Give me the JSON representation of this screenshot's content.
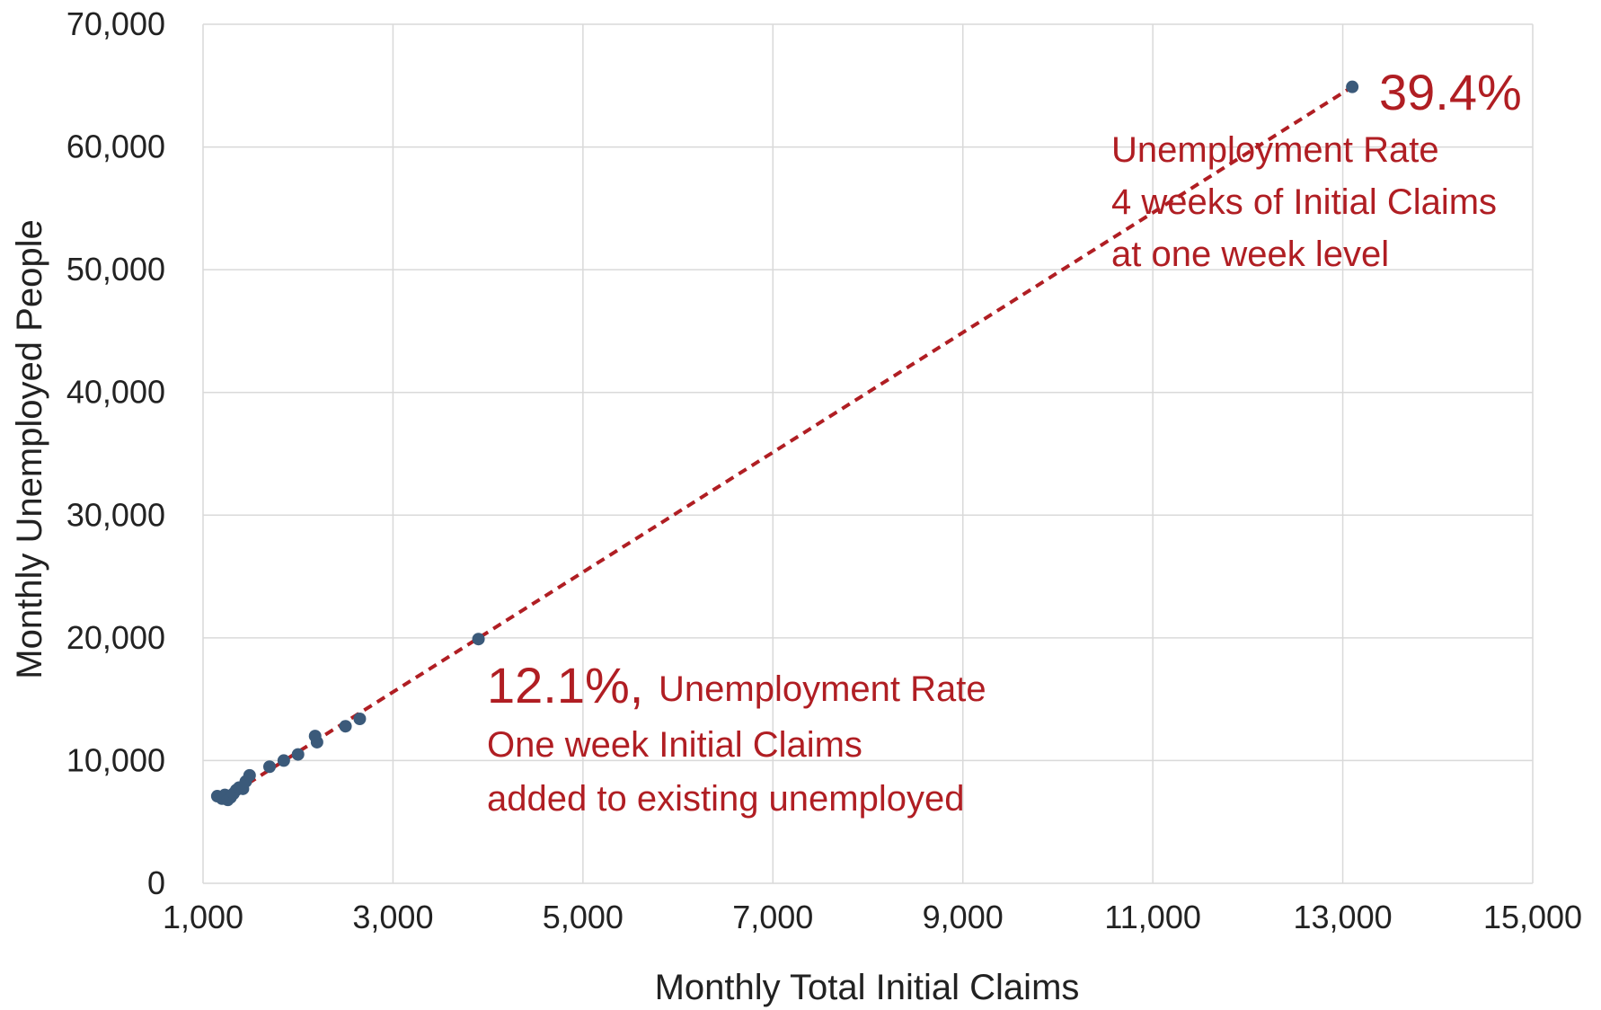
{
  "chart_data": {
    "type": "scatter",
    "xlabel": "Monthly Total Initial Claims",
    "ylabel": "Monthly Unemployed People",
    "xlim": [
      1000,
      15000
    ],
    "ylim": [
      0,
      70000
    ],
    "x_ticks": [
      1000,
      3000,
      5000,
      7000,
      9000,
      11000,
      13000,
      15000
    ],
    "x_tick_labels": [
      "1,000",
      "3,000",
      "5,000",
      "7,000",
      "9,000",
      "11,000",
      "13,000",
      "15,000"
    ],
    "y_ticks": [
      0,
      10000,
      20000,
      30000,
      40000,
      50000,
      60000,
      70000
    ],
    "y_tick_labels": [
      "0",
      "10,000",
      "20,000",
      "30,000",
      "40,000",
      "50,000",
      "60,000",
      "70,000"
    ],
    "grid": true,
    "legend": "none",
    "colors": {
      "points": "#3b5a7a",
      "trendline": "#b01e23",
      "annotation": "#b01e23",
      "grid": "#d9d9d9"
    },
    "series": [
      {
        "values": [
          {
            "x": 1150,
            "y": 7100
          },
          {
            "x": 1200,
            "y": 6900
          },
          {
            "x": 1230,
            "y": 7200
          },
          {
            "x": 1260,
            "y": 6800
          },
          {
            "x": 1290,
            "y": 7000
          },
          {
            "x": 1320,
            "y": 7300
          },
          {
            "x": 1350,
            "y": 7600
          },
          {
            "x": 1380,
            "y": 7800
          },
          {
            "x": 1420,
            "y": 7700
          },
          {
            "x": 1450,
            "y": 8300
          },
          {
            "x": 1490,
            "y": 8800
          },
          {
            "x": 1700,
            "y": 9500
          },
          {
            "x": 1850,
            "y": 10000
          },
          {
            "x": 2000,
            "y": 10500
          },
          {
            "x": 2200,
            "y": 11500
          },
          {
            "x": 2180,
            "y": 12000
          },
          {
            "x": 2500,
            "y": 12800
          },
          {
            "x": 2650,
            "y": 13400
          },
          {
            "x": 3900,
            "y": 19900
          },
          {
            "x": 13100,
            "y": 64900
          }
        ]
      }
    ],
    "trendline": {
      "style": "dashed",
      "from": {
        "x": 1200,
        "y": 6800
      },
      "to": {
        "x": 13100,
        "y": 64900
      }
    },
    "annotations": [
      {
        "big": "39.4%",
        "lines": [
          "Unemployment Rate",
          "4 weeks of Initial Claims",
          "at one week level"
        ]
      },
      {
        "big": "12.1%,",
        "inline": "Unemployment Rate",
        "lines": [
          "One week Initial Claims",
          "added to existing unemployed"
        ]
      }
    ]
  }
}
